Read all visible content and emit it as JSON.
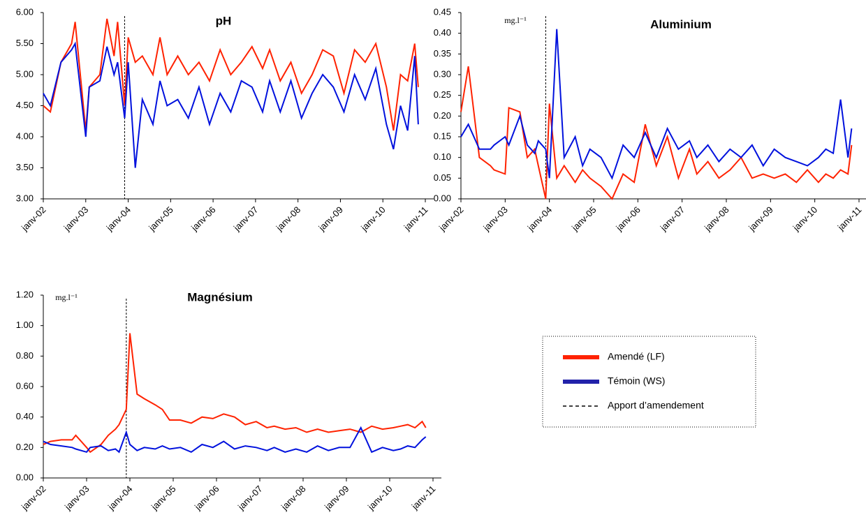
{
  "chart_data": [
    {
      "type": "line",
      "title": "pH",
      "x": [
        "2002-01",
        "2002-03",
        "2002-06",
        "2002-09",
        "2002-10",
        "2003-01",
        "2003-02",
        "2003-05",
        "2003-07",
        "2003-09",
        "2003-10",
        "2003-12",
        "2004-01",
        "2004-03",
        "2004-05",
        "2004-08",
        "2004-10",
        "2004-12",
        "2005-03",
        "2005-06",
        "2005-09",
        "2005-12",
        "2006-03",
        "2006-06",
        "2006-09",
        "2006-12",
        "2007-03",
        "2007-05",
        "2007-08",
        "2007-11",
        "2008-02",
        "2008-05",
        "2008-08",
        "2008-11",
        "2009-02",
        "2009-05",
        "2009-08",
        "2009-11",
        "2010-02",
        "2010-04",
        "2010-06",
        "2010-08",
        "2010-10",
        "2010-11"
      ],
      "xlim": [
        "2002-01",
        "2011-01"
      ],
      "xticks": [
        {
          "value": "2002-01",
          "label": "janv-02"
        },
        {
          "value": "2003-01",
          "label": "janv-03"
        },
        {
          "value": "2004-01",
          "label": "janv-04"
        },
        {
          "value": "2005-01",
          "label": "janv-05"
        },
        {
          "value": "2006-01",
          "label": "janv-06"
        },
        {
          "value": "2007-01",
          "label": "janv-07"
        },
        {
          "value": "2008-01",
          "label": "janv-08"
        },
        {
          "value": "2009-01",
          "label": "janv-09"
        },
        {
          "value": "2010-01",
          "label": "janv-10"
        },
        {
          "value": "2011-01",
          "label": "janv-11"
        }
      ],
      "ylim": [
        3,
        6
      ],
      "yticks": [
        {
          "value": 3,
          "label": "3.00"
        },
        {
          "value": 3.5,
          "label": "3.50"
        },
        {
          "value": 4,
          "label": "4.00"
        },
        {
          "value": 4.5,
          "label": "4.50"
        },
        {
          "value": 5,
          "label": "5.00"
        },
        {
          "value": 5.5,
          "label": "5.50"
        },
        {
          "value": 6,
          "label": "6.00"
        }
      ],
      "vline": "2003-12",
      "series": [
        {
          "color": "#ff2200",
          "values": [
            4.5,
            4.4,
            5.2,
            5.5,
            5.85,
            4.1,
            4.8,
            5.0,
            5.9,
            5.3,
            5.85,
            4.5,
            5.6,
            5.2,
            5.3,
            5.0,
            5.6,
            5.0,
            5.3,
            5.0,
            5.2,
            4.9,
            5.4,
            5.0,
            5.2,
            5.45,
            5.1,
            5.4,
            4.9,
            5.2,
            4.7,
            5.0,
            5.4,
            5.3,
            4.7,
            5.4,
            5.2,
            5.5,
            4.8,
            4.1,
            5.0,
            4.9,
            5.5,
            4.8
          ]
        },
        {
          "color": "#0011dd",
          "values": [
            4.7,
            4.5,
            5.2,
            5.4,
            5.5,
            4.0,
            4.8,
            4.9,
            5.45,
            5.0,
            5.2,
            4.3,
            5.2,
            3.5,
            4.6,
            4.2,
            4.9,
            4.5,
            4.6,
            4.3,
            4.8,
            4.2,
            4.7,
            4.4,
            4.9,
            4.8,
            4.4,
            4.9,
            4.4,
            4.9,
            4.3,
            4.7,
            5.0,
            4.8,
            4.4,
            5.0,
            4.6,
            5.1,
            4.2,
            3.8,
            4.5,
            4.1,
            5.3,
            4.2
          ]
        }
      ]
    },
    {
      "type": "line",
      "title": "Aluminium",
      "unit_label": "mg.l⁻¹",
      "x": [
        "2002-01",
        "2002-03",
        "2002-06",
        "2002-09",
        "2002-10",
        "2003-01",
        "2003-02",
        "2003-05",
        "2003-07",
        "2003-09",
        "2003-10",
        "2003-12",
        "2004-01",
        "2004-03",
        "2004-05",
        "2004-08",
        "2004-10",
        "2004-12",
        "2005-03",
        "2005-06",
        "2005-09",
        "2005-12",
        "2006-03",
        "2006-06",
        "2006-09",
        "2006-12",
        "2007-03",
        "2007-05",
        "2007-08",
        "2007-11",
        "2008-02",
        "2008-05",
        "2008-08",
        "2008-11",
        "2009-02",
        "2009-05",
        "2009-08",
        "2009-11",
        "2010-02",
        "2010-04",
        "2010-06",
        "2010-08",
        "2010-10",
        "2010-11"
      ],
      "xlim": [
        "2002-01",
        "2011-01"
      ],
      "xticks": [
        {
          "value": "2002-01",
          "label": "janv-02"
        },
        {
          "value": "2003-01",
          "label": "janv-03"
        },
        {
          "value": "2004-01",
          "label": "janv-04"
        },
        {
          "value": "2005-01",
          "label": "janv-05"
        },
        {
          "value": "2006-01",
          "label": "janv-06"
        },
        {
          "value": "2007-01",
          "label": "janv-07"
        },
        {
          "value": "2008-01",
          "label": "janv-08"
        },
        {
          "value": "2009-01",
          "label": "janv-09"
        },
        {
          "value": "2010-01",
          "label": "janv-10"
        },
        {
          "value": "2011-01",
          "label": "janv-11"
        }
      ],
      "ylim": [
        0,
        0.45
      ],
      "yticks": [
        {
          "value": 0,
          "label": "0.00"
        },
        {
          "value": 0.05,
          "label": "0.05"
        },
        {
          "value": 0.1,
          "label": "0.10"
        },
        {
          "value": 0.15,
          "label": "0.15"
        },
        {
          "value": 0.2,
          "label": "0.20"
        },
        {
          "value": 0.25,
          "label": "0.25"
        },
        {
          "value": 0.3,
          "label": "0.30"
        },
        {
          "value": 0.35,
          "label": "0.35"
        },
        {
          "value": 0.4,
          "label": "0.40"
        },
        {
          "value": 0.45,
          "label": "0.45"
        }
      ],
      "vline": "2003-12",
      "series": [
        {
          "color": "#ff2200",
          "values": [
            0.21,
            0.32,
            0.1,
            0.08,
            0.07,
            0.06,
            0.22,
            0.21,
            0.1,
            0.12,
            0.08,
            0.0,
            0.23,
            0.05,
            0.08,
            0.04,
            0.07,
            0.05,
            0.03,
            0.0,
            0.06,
            0.04,
            0.18,
            0.08,
            0.15,
            0.05,
            0.12,
            0.06,
            0.09,
            0.05,
            0.07,
            0.1,
            0.05,
            0.06,
            0.05,
            0.06,
            0.04,
            0.07,
            0.04,
            0.06,
            0.05,
            0.07,
            0.06,
            0.13
          ]
        },
        {
          "color": "#0011dd",
          "values": [
            0.15,
            0.18,
            0.12,
            0.12,
            0.13,
            0.15,
            0.13,
            0.2,
            0.13,
            0.11,
            0.14,
            0.12,
            0.05,
            0.41,
            0.1,
            0.15,
            0.08,
            0.12,
            0.1,
            0.05,
            0.13,
            0.1,
            0.16,
            0.1,
            0.17,
            0.12,
            0.14,
            0.1,
            0.13,
            0.09,
            0.12,
            0.1,
            0.13,
            0.08,
            0.12,
            0.1,
            0.09,
            0.08,
            0.1,
            0.12,
            0.11,
            0.24,
            0.1,
            0.17
          ]
        }
      ]
    },
    {
      "type": "line",
      "title": "Magnésium",
      "unit_label": "mg.l⁻¹",
      "x": [
        "2002-01",
        "2002-03",
        "2002-06",
        "2002-09",
        "2002-10",
        "2003-01",
        "2003-02",
        "2003-05",
        "2003-07",
        "2003-09",
        "2003-10",
        "2003-12",
        "2004-01",
        "2004-03",
        "2004-05",
        "2004-08",
        "2004-10",
        "2004-12",
        "2005-03",
        "2005-06",
        "2005-09",
        "2005-12",
        "2006-03",
        "2006-06",
        "2006-09",
        "2006-12",
        "2007-03",
        "2007-05",
        "2007-08",
        "2007-11",
        "2008-02",
        "2008-05",
        "2008-08",
        "2008-11",
        "2009-02",
        "2009-05",
        "2009-08",
        "2009-11",
        "2010-02",
        "2010-04",
        "2010-06",
        "2010-08",
        "2010-10",
        "2010-11"
      ],
      "xlim": [
        "2002-01",
        "2011-01"
      ],
      "xticks": [
        {
          "value": "2002-01",
          "label": "janv-02"
        },
        {
          "value": "2003-01",
          "label": "janv-03"
        },
        {
          "value": "2004-01",
          "label": "janv-04"
        },
        {
          "value": "2005-01",
          "label": "janv-05"
        },
        {
          "value": "2006-01",
          "label": "janv-06"
        },
        {
          "value": "2007-01",
          "label": "janv-07"
        },
        {
          "value": "2008-01",
          "label": "janv-08"
        },
        {
          "value": "2009-01",
          "label": "janv-09"
        },
        {
          "value": "2010-01",
          "label": "janv-10"
        },
        {
          "value": "2011-01",
          "label": "janv-11"
        }
      ],
      "ylim": [
        0,
        1.2
      ],
      "yticks": [
        {
          "value": 0,
          "label": "0.00"
        },
        {
          "value": 0.2,
          "label": "0.20"
        },
        {
          "value": 0.4,
          "label": "0.40"
        },
        {
          "value": 0.6,
          "label": "0.60"
        },
        {
          "value": 0.8,
          "label": "0.80"
        },
        {
          "value": 1,
          "label": "1.00"
        },
        {
          "value": 1.2,
          "label": "1.20"
        }
      ],
      "vline": "2003-12",
      "series": [
        {
          "color": "#ff2200",
          "values": [
            0.22,
            0.24,
            0.25,
            0.25,
            0.28,
            0.2,
            0.17,
            0.22,
            0.28,
            0.32,
            0.35,
            0.45,
            0.95,
            0.55,
            0.52,
            0.48,
            0.45,
            0.38,
            0.38,
            0.36,
            0.4,
            0.39,
            0.42,
            0.4,
            0.35,
            0.37,
            0.33,
            0.34,
            0.32,
            0.33,
            0.3,
            0.32,
            0.3,
            0.31,
            0.32,
            0.3,
            0.34,
            0.32,
            0.33,
            0.34,
            0.35,
            0.33,
            0.37,
            0.33
          ]
        },
        {
          "color": "#0011dd",
          "values": [
            0.24,
            0.22,
            0.21,
            0.2,
            0.19,
            0.17,
            0.2,
            0.21,
            0.18,
            0.19,
            0.17,
            0.3,
            0.22,
            0.18,
            0.2,
            0.19,
            0.21,
            0.19,
            0.2,
            0.17,
            0.22,
            0.2,
            0.24,
            0.19,
            0.21,
            0.2,
            0.18,
            0.2,
            0.17,
            0.19,
            0.17,
            0.21,
            0.18,
            0.2,
            0.2,
            0.33,
            0.17,
            0.2,
            0.18,
            0.19,
            0.21,
            0.2,
            0.25,
            0.27
          ]
        }
      ]
    }
  ],
  "legend": {
    "items": [
      {
        "label": "Amendé (LF)",
        "color": "#ff2200"
      },
      {
        "label": "Témoin (WS)",
        "color": "#2222aa"
      },
      {
        "label": "Apport d’amendement",
        "color": "#000000",
        "dashed": true
      }
    ]
  }
}
